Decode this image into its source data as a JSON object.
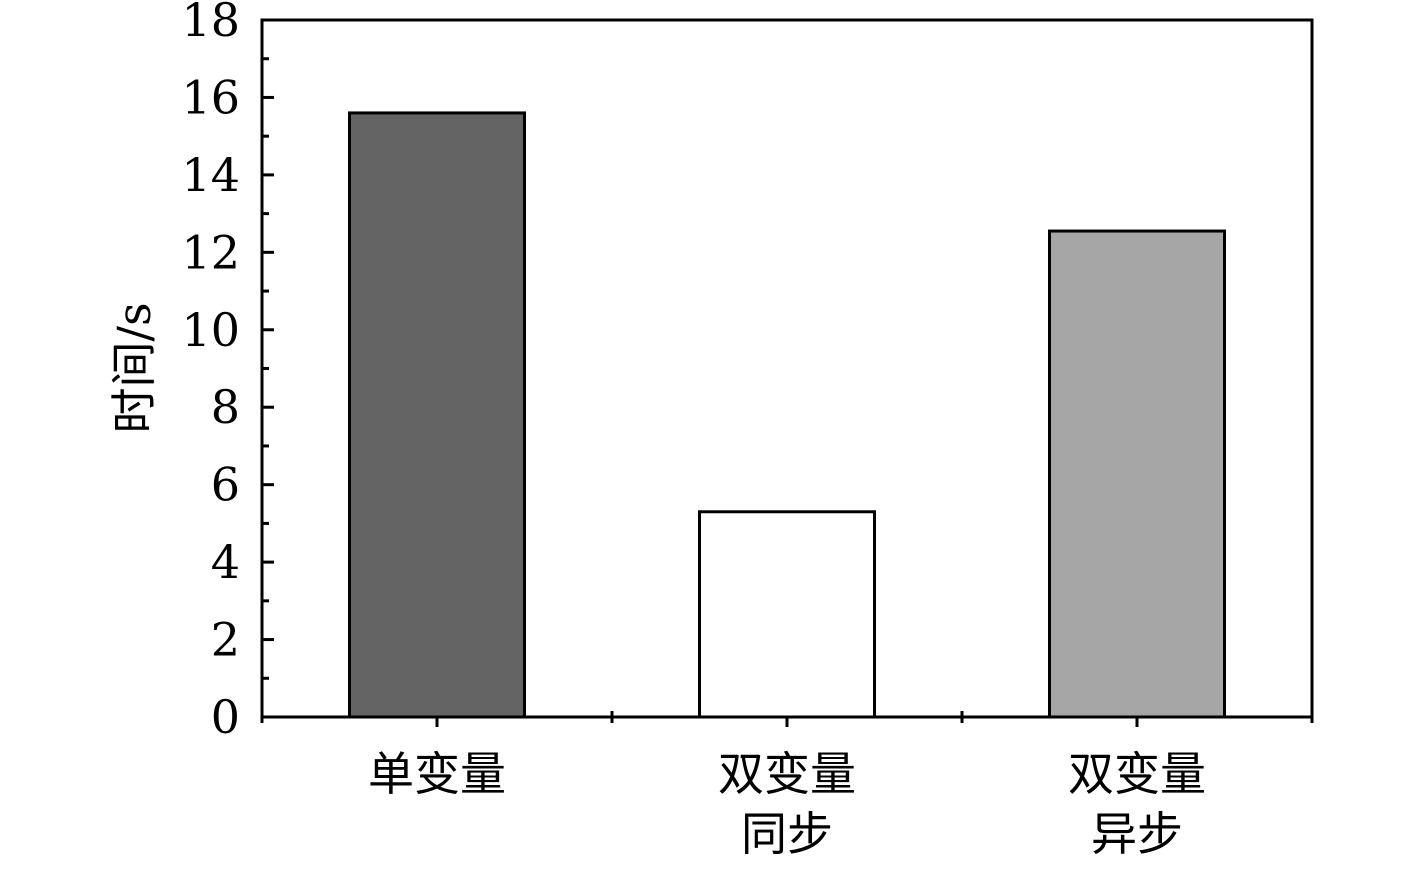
{
  "chart_data": {
    "type": "bar",
    "categories": [
      [
        "单变量"
      ],
      [
        "双变量",
        "同步"
      ],
      [
        "双变量",
        "异步"
      ]
    ],
    "values": [
      15.6,
      5.3,
      12.55
    ],
    "bar_colors": [
      "#646464",
      "#ffffff",
      "#a6a6a6"
    ],
    "ylabel": "时间/s",
    "xlabel": "",
    "title": "",
    "ylim": [
      0,
      18
    ],
    "yticks": [
      0,
      2,
      4,
      6,
      8,
      10,
      12,
      14,
      16,
      18
    ],
    "ytick_labels": [
      "0",
      "2",
      "4",
      "6",
      "8",
      "10",
      "12",
      "14",
      "16",
      "18"
    ],
    "grid": false,
    "legend": "none"
  }
}
